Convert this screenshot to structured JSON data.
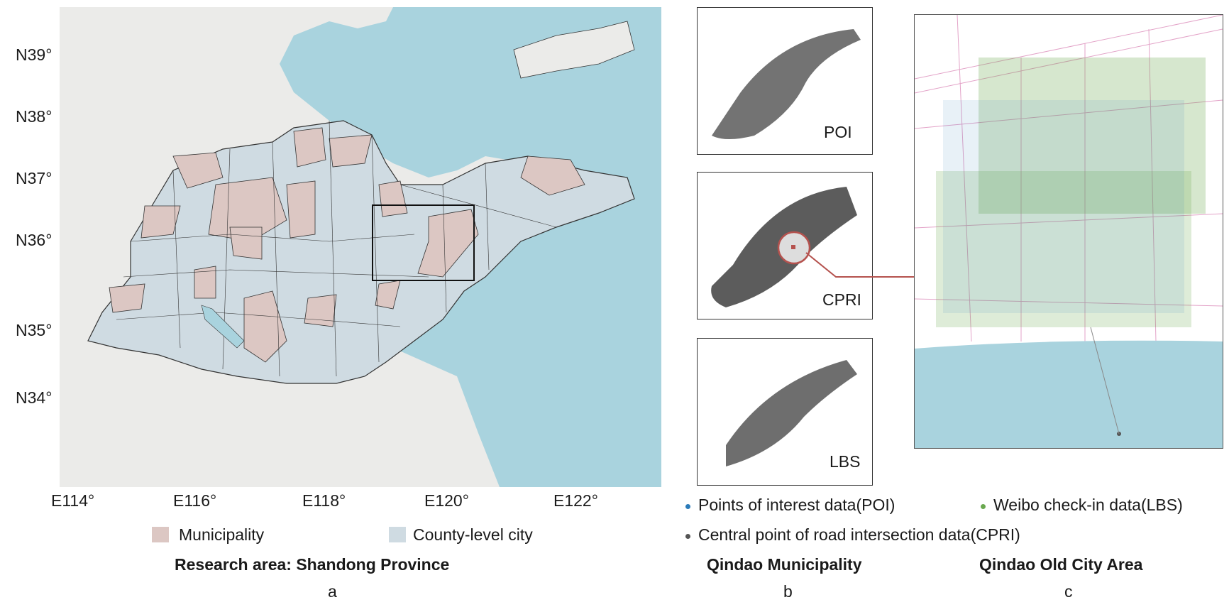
{
  "panel_a": {
    "lat_labels": [
      "N39°",
      "N38°",
      "N37°",
      "N36°",
      "N35°",
      "N34°"
    ],
    "lon_labels": [
      "E114°",
      "E116°",
      "E118°",
      "E120°",
      "E122°"
    ],
    "legend": {
      "municipality": "Municipality",
      "county": "County-level city",
      "municipality_color": "#dcc7c3",
      "county_color": "#cfdbe2"
    },
    "caption": "Research area: Shandong Province",
    "letter": "a"
  },
  "panel_b": {
    "insets": [
      "POI",
      "CPRI",
      "LBS"
    ],
    "caption": "Qindao Municipality",
    "letter": "b"
  },
  "panel_c": {
    "caption": "Qindao Old City Area",
    "letter": "c"
  },
  "legend_bc": {
    "poi": "Points of interest data(POI)",
    "lbs": "Weibo check-in data(LBS)",
    "cpri": "Central point of road intersection data(CPRI)",
    "poi_color": "#2b7bb9",
    "lbs_color": "#6aa84f",
    "cpri_color": "#555555"
  },
  "colors": {
    "sea": "#a9d3de",
    "land": "#ebebe9"
  }
}
